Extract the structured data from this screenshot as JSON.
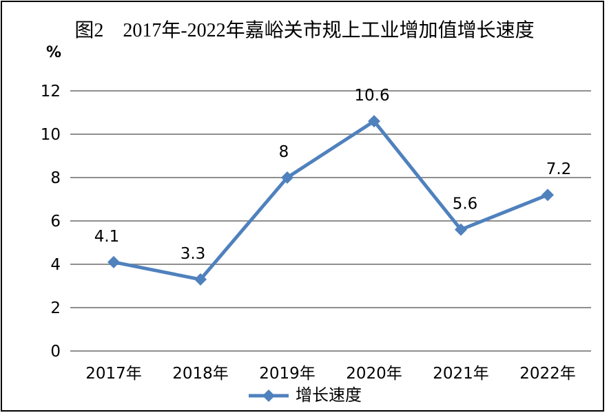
{
  "figure": {
    "title": "图2　2017年-2022年嘉峪关市规上工业增加值增长速度"
  },
  "legend": {
    "series_label": "增长速度",
    "marker": "diamond-line-marker"
  },
  "chart_data": {
    "type": "line",
    "title": "图2　2017年-2022年嘉峪关市规上工业增加值增长速度",
    "categories": [
      "2017年",
      "2018年",
      "2019年",
      "2020年",
      "2021年",
      "2022年"
    ],
    "series": [
      {
        "name": "增长速度",
        "values": [
          4.1,
          3.3,
          8,
          10.6,
          5.6,
          7.2
        ]
      }
    ],
    "data_labels": [
      "4.1",
      "3.3",
      "8",
      "10.6",
      "5.6",
      "7.2"
    ],
    "xlabel": "",
    "ylabel": "%",
    "y_ticks": [
      0,
      2,
      4,
      6,
      8,
      10,
      12
    ],
    "ylim": [
      0,
      12
    ],
    "grid": true,
    "legend_position": "bottom",
    "line_color": "#4F81BD",
    "marker_shape": "diamond",
    "gridline_color": "#8E8E8E",
    "text_color": "#000000",
    "background_color": "#FFFFFF",
    "border_color": "#000000"
  }
}
